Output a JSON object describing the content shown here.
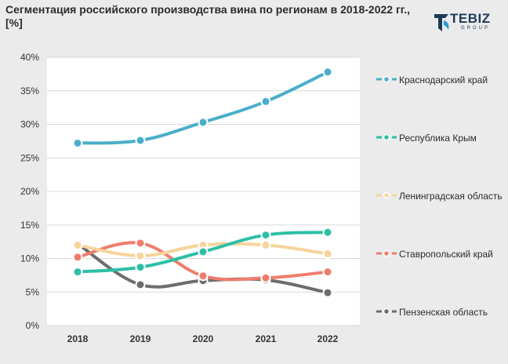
{
  "title": "Сегментация российского производства вина по регионам в 2018-2022 гг., [%]",
  "logo": {
    "word": "TEBIZ",
    "sub": "GROUP"
  },
  "colors": {
    "background": "#ebebeb",
    "plot_background": "#ffffff",
    "grid": "#d9d9d9",
    "marker_fill": "#ffffff"
  },
  "chart_data": {
    "type": "line",
    "title": "Сегментация российского производства вина по регионам в 2018-2022 гг., [%]",
    "xlabel": "",
    "ylabel": "",
    "categories": [
      "2018",
      "2019",
      "2020",
      "2021",
      "2022"
    ],
    "ylim": [
      0,
      40
    ],
    "yticks": [
      0,
      5,
      10,
      15,
      20,
      25,
      30,
      35,
      40
    ],
    "ytick_labels": [
      "0%",
      "5%",
      "10%",
      "15%",
      "20%",
      "25%",
      "30%",
      "35%",
      "40%"
    ],
    "grid": true,
    "legend_position": "right",
    "series": [
      {
        "name": "Краснодарский край",
        "color": "#4aaec9",
        "values": [
          27.2,
          27.6,
          30.3,
          33.4,
          37.8
        ]
      },
      {
        "name": "Республика Крым",
        "color": "#2dbfa5",
        "values": [
          8.0,
          8.7,
          11.0,
          13.5,
          13.9
        ]
      },
      {
        "name": "Ленинградская область",
        "color": "#f7d49c",
        "values": [
          12.0,
          10.4,
          12.0,
          12.0,
          10.7
        ]
      },
      {
        "name": "Ставропольский край",
        "color": "#ef7d6d",
        "values": [
          10.2,
          12.3,
          7.4,
          7.1,
          8.0
        ]
      },
      {
        "name": "Пензенская область",
        "color": "#6d6d6d",
        "values": [
          12.2,
          6.1,
          6.7,
          6.8,
          4.9
        ]
      }
    ]
  }
}
